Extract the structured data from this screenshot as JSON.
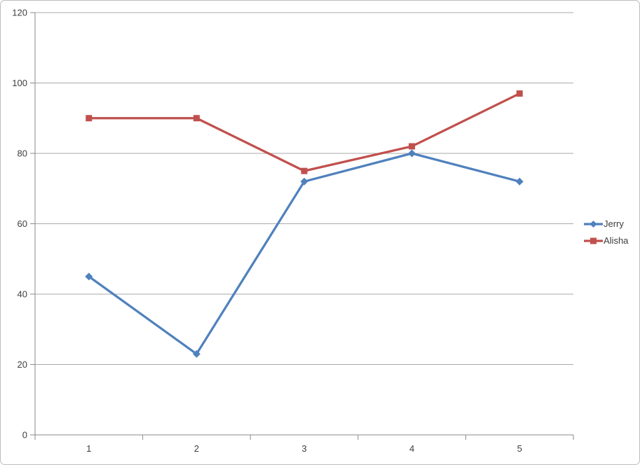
{
  "chart_data": {
    "type": "line",
    "categories": [
      "1",
      "2",
      "3",
      "4",
      "5"
    ],
    "series": [
      {
        "name": "Jerry",
        "values": [
          45,
          23,
          72,
          80,
          72
        ],
        "color": "#4F81BD",
        "marker": "diamond"
      },
      {
        "name": "Alisha",
        "values": [
          90,
          90,
          75,
          82,
          97
        ],
        "color": "#C0504D",
        "marker": "square"
      }
    ],
    "title": "",
    "xlabel": "",
    "ylabel": "",
    "ylim": [
      0,
      120
    ],
    "yticks": [
      0,
      20,
      40,
      60,
      80,
      100,
      120
    ],
    "grid": true,
    "legend_position": "right"
  },
  "styles": {
    "background": "#ffffff",
    "frame_border_color": "#bdbdbd",
    "gridline_color": "#a9a9a9",
    "axis_color": "#8a8a8a",
    "tick_label_color": "#3d3d3d",
    "line_width": 3.25,
    "marker_size": 9
  }
}
